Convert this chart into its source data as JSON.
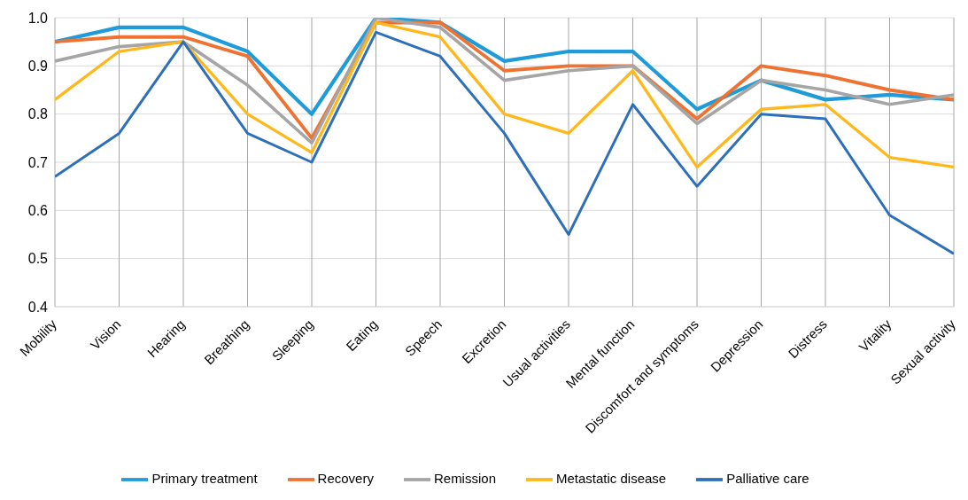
{
  "chart_data": {
    "type": "line",
    "categories": [
      "Mobility",
      "Vision",
      "Hearing",
      "Breathing",
      "Sleeping",
      "Eating",
      "Speech",
      "Excretion",
      "Usual activities",
      "Mental function",
      "Discomfort and symptoms",
      "Depression",
      "Distress",
      "Vitality",
      "Sexual activity"
    ],
    "series": [
      {
        "name": "Primary treatment",
        "color": "#1f9bd9",
        "values": [
          0.95,
          0.98,
          0.98,
          0.93,
          0.8,
          1.0,
          0.99,
          0.91,
          0.93,
          0.93,
          0.81,
          0.87,
          0.83,
          0.84,
          0.83
        ]
      },
      {
        "name": "Recovery",
        "color": "#ee7333",
        "values": [
          0.95,
          0.96,
          0.96,
          0.92,
          0.75,
          0.99,
          0.99,
          0.89,
          0.9,
          0.9,
          0.79,
          0.9,
          0.88,
          0.85,
          0.83
        ]
      },
      {
        "name": "Remission",
        "color": "#a5a5a5",
        "values": [
          0.91,
          0.94,
          0.95,
          0.86,
          0.74,
          1.0,
          0.98,
          0.87,
          0.89,
          0.9,
          0.78,
          0.87,
          0.85,
          0.82,
          0.84
        ]
      },
      {
        "name": "Metastatic disease",
        "color": "#ffb81c",
        "values": [
          0.83,
          0.93,
          0.95,
          0.8,
          0.72,
          0.99,
          0.96,
          0.8,
          0.76,
          0.89,
          0.69,
          0.81,
          0.82,
          0.71,
          0.69
        ]
      },
      {
        "name": "Palliative care",
        "color": "#2e6fba",
        "values": [
          0.67,
          0.76,
          0.95,
          0.76,
          0.7,
          0.97,
          0.92,
          0.76,
          0.55,
          0.82,
          0.65,
          0.8,
          0.79,
          0.59,
          0.51
        ]
      }
    ],
    "ylim": [
      0.4,
      1.0
    ],
    "yticks": [
      0.4,
      0.5,
      0.6,
      0.7,
      0.8,
      0.9,
      {
        "value": 1.0,
        "label": "1.0"
      }
    ],
    "grid": true,
    "legend": "bottom",
    "marker": "none",
    "line_style": "solid"
  }
}
